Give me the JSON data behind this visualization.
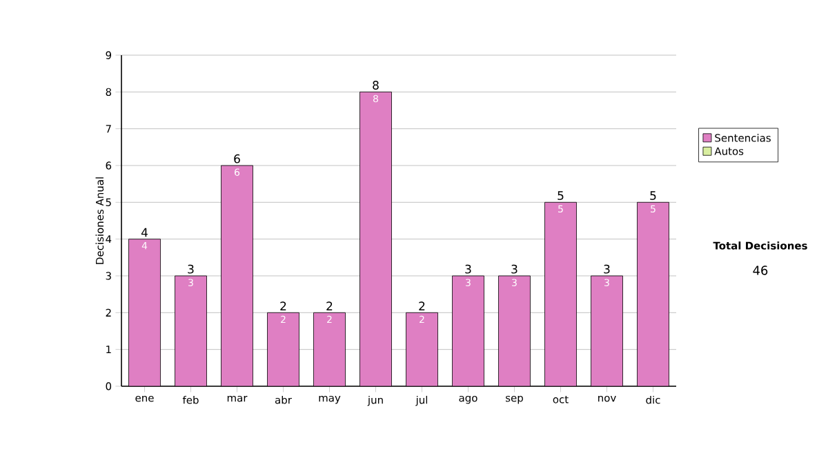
{
  "chart_data": {
    "type": "bar",
    "stacked": true,
    "ylabel": "Decisiones Anual",
    "categories": [
      "ene",
      "feb",
      "mar",
      "abr",
      "may",
      "jun",
      "jul",
      "ago",
      "sep",
      "oct",
      "nov",
      "dic"
    ],
    "series": [
      {
        "name": "Sentencias",
        "color": "#df7fc3",
        "values": [
          4,
          3,
          6,
          2,
          2,
          8,
          2,
          3,
          3,
          5,
          3,
          5
        ],
        "value_labels": [
          "4",
          "3",
          "6",
          "2",
          "2",
          "8",
          "2",
          "3",
          "3",
          "5",
          "3",
          "5"
        ]
      },
      {
        "name": "Autos",
        "color": "#d9eea0",
        "values": [
          0,
          0,
          0,
          0,
          0,
          0,
          0,
          0,
          0,
          0,
          0,
          0
        ]
      }
    ],
    "totals": [
      "4",
      "3",
      "6",
      "2",
      "2",
      "8",
      "2",
      "3",
      "3",
      "5",
      "3",
      "5"
    ],
    "ylim": [
      0,
      9
    ],
    "yticks": [
      0,
      1,
      2,
      3,
      4,
      5,
      6,
      7,
      8,
      9
    ],
    "grid": "y",
    "legend": "right",
    "annotations": [
      "Total Decisiones",
      "46"
    ]
  }
}
